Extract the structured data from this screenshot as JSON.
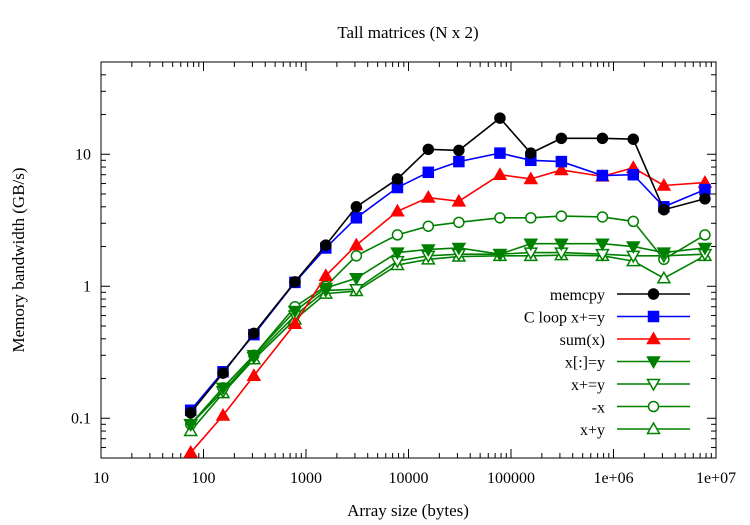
{
  "chart_data": {
    "type": "line",
    "title": "Tall matrices (N x 2)",
    "xlabel": "Array size (bytes)",
    "ylabel": "Memory bandwidth (GB/s)",
    "xscale": "log",
    "yscale": "log",
    "xlim": [
      10,
      10000000
    ],
    "ylim": [
      0.05,
      50
    ],
    "grid": false,
    "legend_position": "bottom-right",
    "x_ticks": [
      {
        "value": 10,
        "label": "10"
      },
      {
        "value": 100,
        "label": "100"
      },
      {
        "value": 1000,
        "label": "1000"
      },
      {
        "value": 10000,
        "label": "10000"
      },
      {
        "value": 100000,
        "label": "100000"
      },
      {
        "value": 1000000,
        "label": "1e+06"
      },
      {
        "value": 10000000,
        "label": "1e+07"
      }
    ],
    "y_ticks": [
      {
        "value": 0.1,
        "label": "0.1"
      },
      {
        "value": 1,
        "label": "1"
      },
      {
        "value": 10,
        "label": "10"
      }
    ],
    "x": [
      75,
      155,
      310,
      780,
      1560,
      3100,
      7800,
      15600,
      31000,
      78000,
      156000,
      310000,
      780000,
      1560000,
      3100000,
      7800000
    ],
    "series": [
      {
        "name": "memcpy",
        "color": "#000000",
        "marker": "circle-filled",
        "values": [
          0.11,
          0.22,
          0.44,
          1.08,
          2.05,
          4.0,
          6.5,
          10.9,
          10.7,
          18.8,
          10.2,
          13.2,
          13.2,
          13.0,
          3.8,
          4.6
        ]
      },
      {
        "name": "C loop x+=y",
        "color": "#0000ff",
        "marker": "square-filled",
        "values": [
          0.115,
          0.225,
          0.43,
          1.07,
          1.95,
          3.3,
          5.6,
          7.3,
          8.8,
          10.2,
          9.0,
          8.8,
          6.9,
          7.0,
          4.0,
          5.4
        ]
      },
      {
        "name": "sum(x)",
        "color": "#ff0000",
        "marker": "triangle-up-filled",
        "values": [
          0.055,
          0.105,
          0.21,
          0.52,
          1.2,
          2.05,
          3.7,
          4.7,
          4.4,
          7.0,
          6.5,
          7.6,
          6.8,
          7.9,
          5.8,
          6.1
        ]
      },
      {
        "name": "x[:]=y",
        "color": "#008000",
        "marker": "triangle-down-filled",
        "values": [
          0.09,
          0.17,
          0.3,
          0.65,
          0.97,
          1.15,
          1.8,
          1.9,
          1.95,
          1.75,
          2.1,
          2.1,
          2.1,
          2.0,
          1.8,
          1.95
        ]
      },
      {
        "name": "x+=y",
        "color": "#008000",
        "marker": "triangle-down-open",
        "values": [
          0.09,
          0.16,
          0.29,
          0.6,
          0.93,
          0.95,
          1.55,
          1.7,
          1.75,
          1.75,
          1.8,
          1.8,
          1.75,
          1.7,
          1.7,
          1.75
        ]
      },
      {
        "name": "-x",
        "color": "#008000",
        "marker": "circle-open",
        "values": [
          0.09,
          0.17,
          0.3,
          0.7,
          1.0,
          1.7,
          2.45,
          2.85,
          3.05,
          3.3,
          3.3,
          3.4,
          3.35,
          3.1,
          1.6,
          2.45
        ]
      },
      {
        "name": "x+y",
        "color": "#008000",
        "marker": "triangle-up-open",
        "values": [
          0.08,
          0.155,
          0.28,
          0.56,
          0.88,
          0.92,
          1.45,
          1.6,
          1.68,
          1.7,
          1.7,
          1.72,
          1.7,
          1.55,
          1.15,
          1.7
        ]
      }
    ]
  }
}
